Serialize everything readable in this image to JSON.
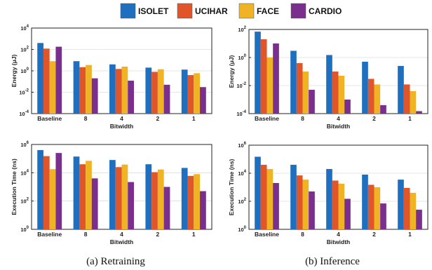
{
  "legend": [
    {
      "name": "ISOLET",
      "color": "#1f6fc1"
    },
    {
      "name": "UCIHAR",
      "color": "#e0552a"
    },
    {
      "name": "FACE",
      "color": "#f0b323"
    },
    {
      "name": "CARDIO",
      "color": "#7a2e8e"
    }
  ],
  "captions": {
    "left": "(a) Retraining",
    "right": "(b) Inference"
  },
  "chart_data": [
    {
      "type": "bar",
      "panel": "retraining-energy",
      "xlabel": "Bitwidth",
      "ylabel": "Energy (μJ)",
      "yscale": "log",
      "ylim": [
        0.0001,
        10000
      ],
      "yticks": [
        {
          "exp": "-4",
          "value": 0.0001
        },
        {
          "exp": "-2",
          "value": 0.01
        },
        {
          "exp": "0",
          "value": 1
        },
        {
          "exp": "2",
          "value": 100
        },
        {
          "exp": "4",
          "value": 10000
        }
      ],
      "categories": [
        "Baseline",
        "8",
        "4",
        "2",
        "1"
      ],
      "series": [
        {
          "name": "ISOLET",
          "values": [
            400,
            8,
            4,
            2,
            1.3
          ]
        },
        {
          "name": "UCIHAR",
          "values": [
            120,
            2.2,
            1.5,
            0.8,
            0.4
          ]
        },
        {
          "name": "FACE",
          "values": [
            8,
            3.5,
            2.5,
            1.4,
            0.6
          ]
        },
        {
          "name": "CARDIO",
          "values": [
            180,
            0.2,
            0.12,
            0.05,
            0.03
          ]
        }
      ]
    },
    {
      "type": "bar",
      "panel": "inference-energy",
      "xlabel": "Bitwidth",
      "ylabel": "Energy (μJ)",
      "yscale": "log",
      "ylim": [
        0.0001,
        100
      ],
      "yticks": [
        {
          "exp": "-4",
          "value": 0.0001
        },
        {
          "exp": "-2",
          "value": 0.01
        },
        {
          "exp": "0",
          "value": 1
        },
        {
          "exp": "2",
          "value": 100
        }
      ],
      "categories": [
        "Baseline",
        "8",
        "4",
        "2",
        "1"
      ],
      "series": [
        {
          "name": "ISOLET",
          "values": [
            70,
            3,
            1.5,
            0.5,
            0.25
          ]
        },
        {
          "name": "UCIHAR",
          "values": [
            20,
            0.4,
            0.1,
            0.03,
            0.012
          ]
        },
        {
          "name": "FACE",
          "values": [
            1,
            0.1,
            0.05,
            0.012,
            0.004
          ]
        },
        {
          "name": "CARDIO",
          "values": [
            10,
            0.005,
            0.001,
            0.0004,
            0.00015
          ]
        }
      ]
    },
    {
      "type": "bar",
      "panel": "retraining-time",
      "xlabel": "Bitwidth",
      "ylabel": "Execution Time (ns)",
      "yscale": "log",
      "ylim": [
        1,
        1000000
      ],
      "yticks": [
        {
          "exp": "0",
          "value": 1
        },
        {
          "exp": "2",
          "value": 100
        },
        {
          "exp": "4",
          "value": 10000
        },
        {
          "exp": "6",
          "value": 1000000
        }
      ],
      "categories": [
        "Baseline",
        "8",
        "4",
        "2",
        "1"
      ],
      "series": [
        {
          "name": "ISOLET",
          "values": [
            400000,
            140000,
            80000,
            40000,
            22000
          ]
        },
        {
          "name": "UCIHAR",
          "values": [
            150000,
            40000,
            25000,
            11000,
            6000
          ]
        },
        {
          "name": "FACE",
          "values": [
            18000,
            70000,
            38000,
            17000,
            8000
          ]
        },
        {
          "name": "CARDIO",
          "values": [
            250000,
            4000,
            2200,
            1000,
            500
          ]
        }
      ]
    },
    {
      "type": "bar",
      "panel": "inference-time",
      "xlabel": "Bitwidth",
      "ylabel": "Execution Time (ns)",
      "yscale": "log",
      "ylim": [
        1,
        1000000
      ],
      "yticks": [
        {
          "exp": "0",
          "value": 1
        },
        {
          "exp": "2",
          "value": 100
        },
        {
          "exp": "4",
          "value": 10000
        },
        {
          "exp": "6",
          "value": 1000000
        }
      ],
      "categories": [
        "Baseline",
        "8",
        "4",
        "2",
        "1"
      ],
      "series": [
        {
          "name": "ISOLET",
          "values": [
            150000,
            40000,
            20000,
            8000,
            3500
          ]
        },
        {
          "name": "UCIHAR",
          "values": [
            40000,
            7000,
            3000,
            1500,
            900
          ]
        },
        {
          "name": "FACE",
          "values": [
            20000,
            3500,
            1800,
            1000,
            400
          ]
        },
        {
          "name": "CARDIO",
          "values": [
            2000,
            500,
            150,
            70,
            25
          ]
        }
      ]
    }
  ]
}
